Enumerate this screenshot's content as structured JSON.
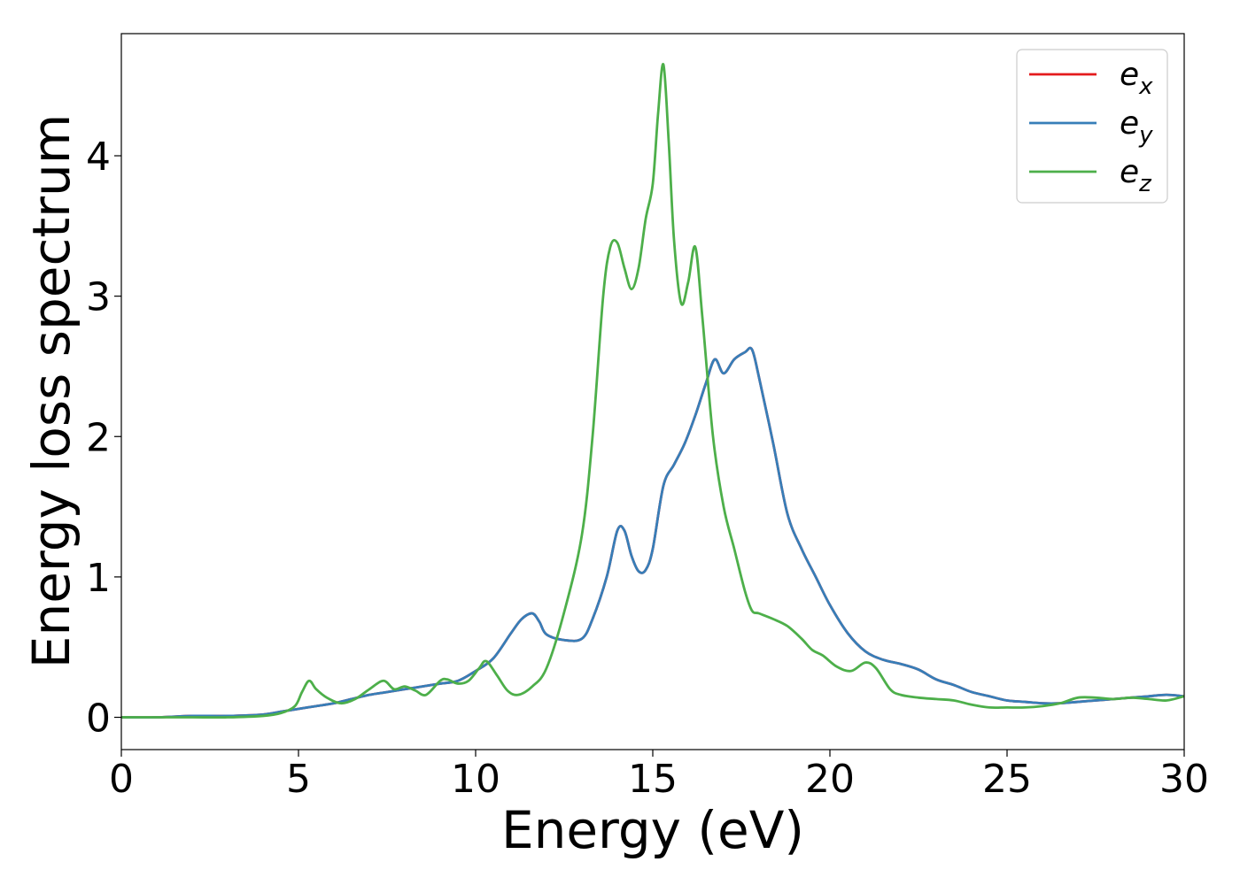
{
  "chart_data": {
    "type": "line",
    "xlabel": "Energy (eV)",
    "ylabel": "Energy loss spectrum",
    "xlim": [
      0,
      30
    ],
    "ylim": [
      -0.23,
      4.87
    ],
    "xticks": [
      0,
      5,
      10,
      15,
      20,
      25,
      30
    ],
    "yticks": [
      0,
      1,
      2,
      3,
      4
    ],
    "grid": false,
    "legend_position": "top-right",
    "series": [
      {
        "name": "ex",
        "label_base": "e",
        "label_sub": "x",
        "color": "#e41a1c",
        "x": [
          0,
          1,
          2,
          3,
          4,
          4.5,
          5,
          5.5,
          6,
          6.5,
          7,
          7.5,
          8,
          8.5,
          9,
          9.5,
          10,
          10.5,
          11,
          11.3,
          11.6,
          11.8,
          12,
          12.5,
          13,
          13.3,
          13.7,
          14,
          14.2,
          14.4,
          14.6,
          14.8,
          15,
          15.3,
          15.6,
          15.9,
          16.2,
          16.5,
          16.75,
          17,
          17.3,
          17.6,
          17.8,
          18,
          18.4,
          18.8,
          19.2,
          19.6,
          20,
          20.5,
          21,
          21.5,
          22,
          22.5,
          23,
          23.5,
          24,
          24.5,
          25,
          25.5,
          26,
          26.5,
          27,
          27.5,
          28,
          28.5,
          29,
          29.5,
          30
        ],
        "y": [
          0,
          0,
          0.01,
          0.01,
          0.02,
          0.04,
          0.06,
          0.08,
          0.1,
          0.13,
          0.16,
          0.18,
          0.2,
          0.22,
          0.24,
          0.26,
          0.33,
          0.42,
          0.6,
          0.7,
          0.74,
          0.68,
          0.59,
          0.55,
          0.56,
          0.7,
          1.0,
          1.33,
          1.33,
          1.15,
          1.04,
          1.05,
          1.2,
          1.65,
          1.8,
          1.95,
          2.15,
          2.38,
          2.55,
          2.45,
          2.55,
          2.6,
          2.62,
          2.42,
          1.95,
          1.45,
          1.2,
          1.0,
          0.8,
          0.6,
          0.47,
          0.41,
          0.38,
          0.34,
          0.27,
          0.23,
          0.18,
          0.15,
          0.12,
          0.11,
          0.1,
          0.1,
          0.11,
          0.12,
          0.13,
          0.14,
          0.15,
          0.16,
          0.15
        ]
      },
      {
        "name": "ey",
        "label_base": "e",
        "label_sub": "y",
        "color": "#377eb8",
        "x": [
          0,
          1,
          2,
          3,
          4,
          4.5,
          5,
          5.5,
          6,
          6.5,
          7,
          7.5,
          8,
          8.5,
          9,
          9.5,
          10,
          10.5,
          11,
          11.3,
          11.6,
          11.8,
          12,
          12.5,
          13,
          13.3,
          13.7,
          14,
          14.2,
          14.4,
          14.6,
          14.8,
          15,
          15.3,
          15.6,
          15.9,
          16.2,
          16.5,
          16.75,
          17,
          17.3,
          17.6,
          17.8,
          18,
          18.4,
          18.8,
          19.2,
          19.6,
          20,
          20.5,
          21,
          21.5,
          22,
          22.5,
          23,
          23.5,
          24,
          24.5,
          25,
          25.5,
          26,
          26.5,
          27,
          27.5,
          28,
          28.5,
          29,
          29.5,
          30
        ],
        "y": [
          0,
          0,
          0.01,
          0.01,
          0.02,
          0.04,
          0.06,
          0.08,
          0.1,
          0.13,
          0.16,
          0.18,
          0.2,
          0.22,
          0.24,
          0.26,
          0.33,
          0.42,
          0.6,
          0.7,
          0.74,
          0.68,
          0.59,
          0.55,
          0.56,
          0.7,
          1.0,
          1.33,
          1.33,
          1.15,
          1.04,
          1.05,
          1.2,
          1.65,
          1.8,
          1.95,
          2.15,
          2.38,
          2.55,
          2.45,
          2.55,
          2.6,
          2.62,
          2.42,
          1.95,
          1.45,
          1.2,
          1.0,
          0.8,
          0.6,
          0.47,
          0.41,
          0.38,
          0.34,
          0.27,
          0.23,
          0.18,
          0.15,
          0.12,
          0.11,
          0.1,
          0.1,
          0.11,
          0.12,
          0.13,
          0.14,
          0.15,
          0.16,
          0.15
        ]
      },
      {
        "name": "ez",
        "label_base": "e",
        "label_sub": "z",
        "color": "#4daf4a",
        "x": [
          0,
          1,
          2,
          3,
          4,
          4.5,
          4.9,
          5.1,
          5.3,
          5.5,
          5.8,
          6.2,
          6.6,
          7,
          7.4,
          7.7,
          8,
          8.3,
          8.6,
          9,
          9.2,
          9.5,
          9.8,
          10.1,
          10.3,
          10.6,
          10.9,
          11.2,
          11.6,
          12,
          12.5,
          13,
          13.3,
          13.6,
          13.8,
          14,
          14.2,
          14.4,
          14.6,
          14.8,
          15,
          15.15,
          15.3,
          15.45,
          15.6,
          15.8,
          16,
          16.2,
          16.4,
          16.7,
          17,
          17.3,
          17.6,
          17.8,
          18,
          18.4,
          18.8,
          19.2,
          19.5,
          19.8,
          20.2,
          20.6,
          21,
          21.3,
          21.7,
          22,
          22.5,
          23,
          23.5,
          24,
          24.5,
          25,
          25.5,
          26,
          26.5,
          27,
          27.5,
          28,
          28.5,
          29,
          29.5,
          30
        ],
        "y": [
          0,
          0,
          0,
          0,
          0.01,
          0.03,
          0.08,
          0.18,
          0.26,
          0.2,
          0.14,
          0.1,
          0.13,
          0.2,
          0.26,
          0.2,
          0.22,
          0.19,
          0.16,
          0.26,
          0.27,
          0.24,
          0.26,
          0.35,
          0.4,
          0.3,
          0.19,
          0.16,
          0.22,
          0.35,
          0.75,
          1.3,
          2.0,
          3.0,
          3.35,
          3.38,
          3.2,
          3.05,
          3.2,
          3.55,
          3.8,
          4.3,
          4.65,
          4.1,
          3.4,
          2.95,
          3.1,
          3.35,
          2.85,
          2.0,
          1.5,
          1.2,
          0.9,
          0.76,
          0.74,
          0.7,
          0.65,
          0.56,
          0.48,
          0.44,
          0.36,
          0.33,
          0.39,
          0.35,
          0.2,
          0.16,
          0.14,
          0.13,
          0.12,
          0.09,
          0.07,
          0.07,
          0.07,
          0.08,
          0.1,
          0.14,
          0.14,
          0.13,
          0.14,
          0.13,
          0.12,
          0.15
        ]
      }
    ]
  }
}
